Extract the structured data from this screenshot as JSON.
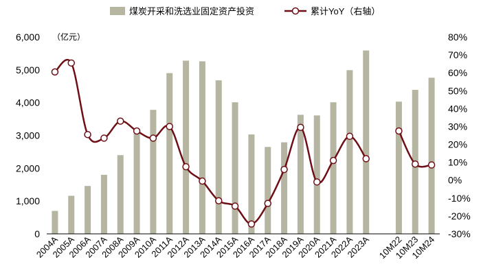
{
  "chart_data": {
    "type": "bar+line",
    "categories": [
      "2004A",
      "2005A",
      "2006A",
      "2007A",
      "2008A",
      "2009A",
      "2010A",
      "2011A",
      "2012A",
      "2013A",
      "2014A",
      "2015A",
      "2016A",
      "2017A",
      "2018A",
      "2019A",
      "2020A",
      "2021A",
      "2022A",
      "2023A",
      "",
      "10M22",
      "10M23",
      "10M24"
    ],
    "series": [
      {
        "name": "煤炭开采和洗选业固定资产投资",
        "type": "bar",
        "axis": "left",
        "color": "#b5b5a2",
        "values": [
          700,
          1160,
          1460,
          1800,
          2400,
          3080,
          3780,
          4900,
          5280,
          5260,
          4680,
          4010,
          3030,
          2650,
          2790,
          3630,
          3610,
          4010,
          4990,
          5590,
          null,
          4030,
          4390,
          4760
        ]
      },
      {
        "name": "累计YoY（右轴）",
        "type": "line",
        "axis": "right",
        "color": "#6e0f15",
        "values": [
          60.5,
          65.5,
          25.5,
          23.5,
          33,
          27.5,
          23.5,
          30,
          7.5,
          -0.5,
          -11.5,
          -14.5,
          -24.5,
          -13,
          6,
          29.5,
          -1,
          11,
          24.5,
          12,
          null,
          27.5,
          9,
          8.5
        ]
      }
    ],
    "y_left": {
      "label": "（亿元）",
      "min": 0,
      "max": 6000,
      "ticks": [
        0,
        1000,
        2000,
        3000,
        4000,
        5000,
        6000
      ],
      "tick_labels": [
        "0",
        "1,000",
        "2,000",
        "3,000",
        "4,000",
        "5,000",
        "6,000"
      ]
    },
    "y_right": {
      "min": -30,
      "max": 80,
      "ticks": [
        -30,
        -20,
        -10,
        0,
        10,
        20,
        30,
        40,
        50,
        60,
        70,
        80
      ],
      "tick_labels": [
        "-30%",
        "-20%",
        "-10%",
        "0%",
        "10%",
        "20%",
        "30%",
        "40%",
        "50%",
        "60%",
        "70%",
        "80%"
      ]
    },
    "grid": false,
    "legend_position": "top"
  }
}
